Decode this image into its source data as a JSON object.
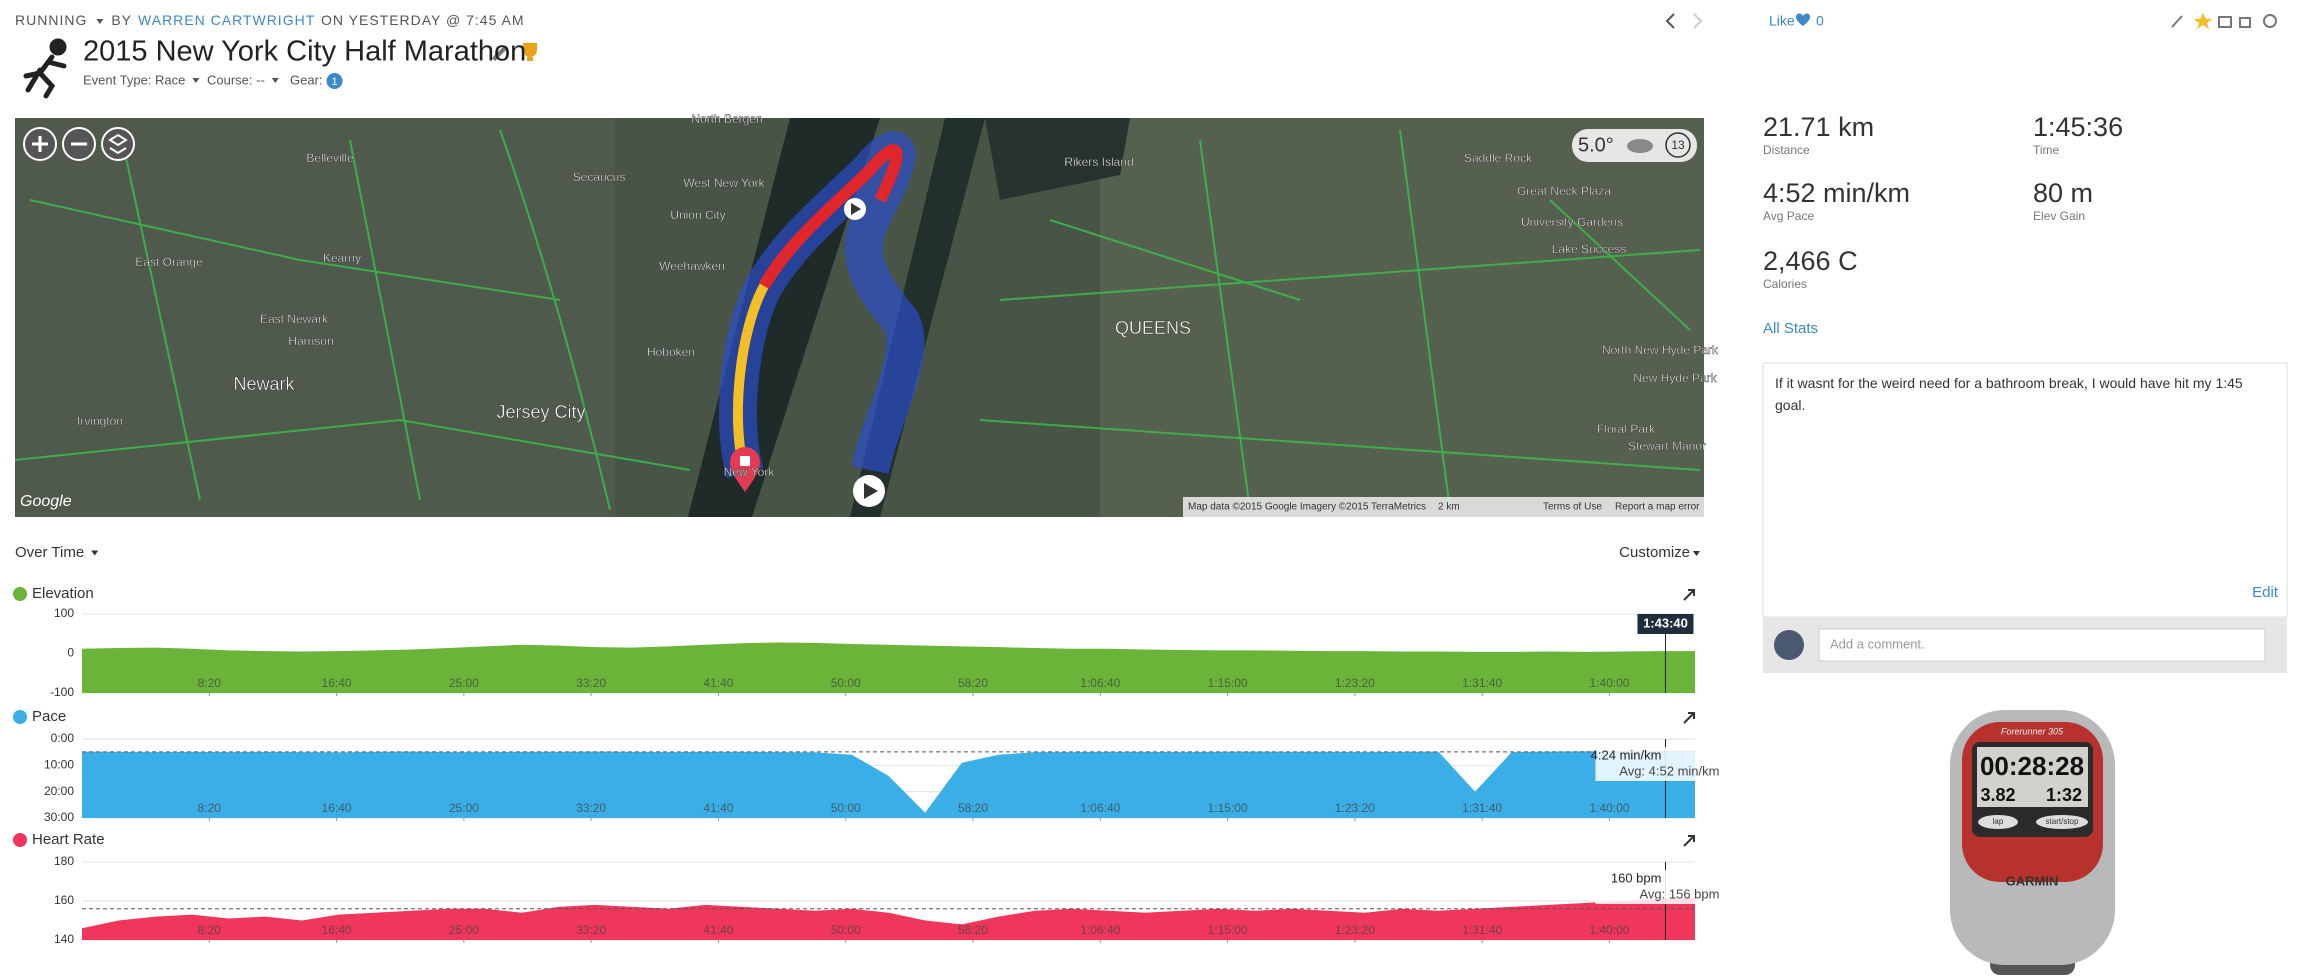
{
  "header": {
    "activity_type": "RUNNING",
    "by": "BY",
    "author": "WARREN CARTWRIGHT",
    "date": "ON YESTERDAY @ 7:45 AM",
    "title": "2015 New York City Half Marathon",
    "event_type": "Event Type: Race",
    "course": "Course: --",
    "gear": "Gear:",
    "gear_count": 1
  },
  "map": {
    "labels": [
      "North Bergen",
      "Belleville",
      "Secaucus",
      "West New York",
      "Union City",
      "East Orange",
      "Kearny",
      "Weehawken",
      "East Newark",
      "Harrison",
      "Newark",
      "Hoboken",
      "Jersey City",
      "Irvington",
      "New York",
      "QUEENS",
      "Rikers Island",
      "Saddle Rock",
      "Great Neck Plaza",
      "University Gardens",
      "Lake Success",
      "North New Hyde Park",
      "New Hyde Park",
      "Floral Park",
      "Stewart Manor"
    ],
    "weather": {
      "temperature": "5.0°",
      "badge": "13"
    },
    "attribution": "Google",
    "footer": [
      "Map data ©2015 Google Imagery ©2015 TerraMetrics",
      "2 km",
      "Terms of Use",
      "Report a map error"
    ]
  },
  "toolbar": {
    "view": "Over Time",
    "customize": "Customize"
  },
  "time_axis": {
    "xlim": [
      0,
      6336
    ],
    "xticks": [
      {
        "value": 500,
        "label": "8:20"
      },
      {
        "value": 1000,
        "label": "16:40"
      },
      {
        "value": 1500,
        "label": "25:00"
      },
      {
        "value": 2000,
        "label": "33:20"
      },
      {
        "value": 2500,
        "label": "41:40"
      },
      {
        "value": 3000,
        "label": "50:00"
      },
      {
        "value": 3500,
        "label": "58:20"
      },
      {
        "value": 4000,
        "label": "1:06:40"
      },
      {
        "value": 4500,
        "label": "1:15:00"
      },
      {
        "value": 5000,
        "label": "1:23:20"
      },
      {
        "value": 5500,
        "label": "1:31:40"
      },
      {
        "value": 6000,
        "label": "1:40:00"
      }
    ],
    "x": [
      0,
      144,
      288,
      432,
      576,
      720,
      864,
      1008,
      1152,
      1296,
      1440,
      1584,
      1728,
      1872,
      2016,
      2160,
      2304,
      2448,
      2592,
      2736,
      2880,
      3024,
      3168,
      3312,
      3456,
      3600,
      3744,
      3888,
      4032,
      4176,
      4320,
      4464,
      4608,
      4752,
      4896,
      5040,
      5184,
      5328,
      5472,
      5616,
      5760,
      5904,
      6048,
      6192,
      6336
    ],
    "cursor": {
      "value": 6220,
      "label": "1:43:40"
    }
  },
  "charts": [
    {
      "type": "area",
      "name": "Elevation",
      "color": "#6ab43a",
      "ylim": [
        -100,
        100
      ],
      "yticks": [
        -100,
        0,
        100
      ],
      "values": [
        12,
        14,
        15,
        12,
        8,
        6,
        5,
        6,
        8,
        10,
        14,
        18,
        22,
        20,
        16,
        15,
        18,
        22,
        26,
        28,
        27,
        24,
        22,
        20,
        18,
        16,
        14,
        12,
        12,
        10,
        9,
        8,
        8,
        7,
        6,
        6,
        5,
        5,
        4,
        4,
        5,
        4,
        5,
        6,
        6
      ]
    },
    {
      "type": "area",
      "name": "Pace",
      "color": "#3aaee6",
      "ylim": [
        30,
        0
      ],
      "yticks": [
        {
          "value": 0,
          "label": "0:00"
        },
        {
          "value": 10,
          "label": "10:00"
        },
        {
          "value": 20,
          "label": "20:00"
        },
        {
          "value": 30,
          "label": "30:00"
        }
      ],
      "values": [
        4.8,
        4.9,
        5,
        4.9,
        5,
        4.9,
        5,
        5.1,
        4.9,
        4.8,
        5,
        5,
        4.9,
        4.9,
        4.8,
        4.9,
        5,
        4.9,
        4.9,
        5,
        5.1,
        6,
        14,
        28,
        9,
        6,
        5,
        5,
        4.9,
        4.9,
        5,
        4.9,
        4.8,
        4.9,
        4.9,
        5,
        4.9,
        4.8,
        20,
        5,
        4.8,
        4.7,
        4.6,
        4.5,
        4.4
      ],
      "cursor_label": "4:24 min/km",
      "average": 4.87,
      "average_label": "Avg: 4:52 min/km"
    },
    {
      "type": "area",
      "name": "Heart Rate",
      "color": "#f0365a",
      "ylim": [
        140,
        180
      ],
      "yticks": [
        140,
        160,
        180
      ],
      "values": [
        146,
        150,
        152,
        153,
        151,
        152,
        150,
        153,
        154,
        155,
        156,
        156,
        154,
        157,
        158,
        157,
        156,
        158,
        157,
        156,
        155,
        156,
        154,
        150,
        148,
        152,
        155,
        156,
        155,
        154,
        155,
        156,
        155,
        156,
        155,
        154,
        156,
        155,
        156,
        157,
        158,
        159,
        160,
        161,
        162
      ],
      "cursor_label": "160 bpm",
      "average": 156,
      "average_label": "Avg: 156 bpm"
    }
  ],
  "social": {
    "like": "Like",
    "like_count": 0
  },
  "stats": [
    {
      "value": "21.71 km",
      "label": "Distance"
    },
    {
      "value": "1:45:36",
      "label": "Time"
    },
    {
      "value": "4:52 min/km",
      "label": "Avg Pace"
    },
    {
      "value": "80 m",
      "label": "Elev Gain"
    },
    {
      "value": "2,466 C",
      "label": "Calories"
    }
  ],
  "all_stats": "All Stats",
  "note": {
    "text": "If it wasnt for the weird need for a bathroom break, I would have hit my 1:45 goal.",
    "edit": "Edit"
  },
  "comment": {
    "placeholder": "Add a comment."
  },
  "device": {
    "model": "Forerunner 305",
    "time": "00:28:28",
    "distance": "3.82",
    "pace": "1:32",
    "lap": "lap",
    "start_stop": "start/stop",
    "brand": "GARMIN"
  }
}
